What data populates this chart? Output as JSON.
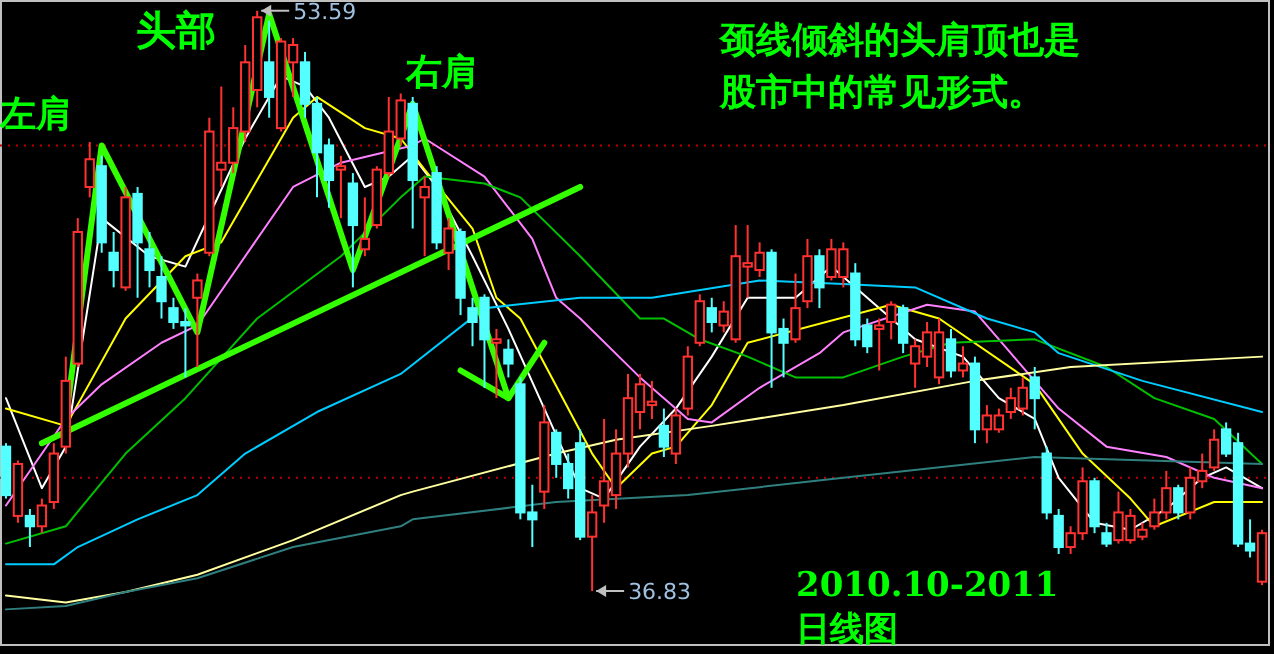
{
  "chart_data": {
    "type": "candlestick",
    "categories": [
      null,
      null,
      null,
      null,
      null,
      null,
      null,
      null,
      null,
      null,
      null,
      null,
      null,
      null,
      null,
      null,
      null,
      null,
      null,
      null,
      null,
      null,
      null,
      null,
      null,
      null,
      null,
      null,
      null,
      null,
      null,
      null,
      null,
      null,
      null,
      null,
      null,
      null,
      null,
      null,
      null,
      null,
      null,
      null,
      null,
      null,
      null,
      null,
      null,
      null,
      null,
      null,
      null,
      null,
      null,
      null,
      null,
      null,
      null,
      null,
      null,
      null,
      null,
      null,
      null,
      null,
      null,
      null,
      null,
      null,
      null,
      null,
      null,
      null,
      null,
      null,
      null,
      null,
      null,
      null,
      null,
      null,
      null,
      null,
      null,
      null,
      null,
      null,
      null,
      null,
      null,
      null,
      null,
      null,
      null,
      null,
      null,
      null,
      null,
      null,
      null,
      null,
      null,
      null,
      null,
      null
    ],
    "ohlc": [
      [
        41.0,
        41.1,
        39.5,
        39.6
      ],
      [
        39.0,
        40.6,
        38.8,
        40.5
      ],
      [
        39.0,
        39.2,
        38.1,
        38.7
      ],
      [
        38.7,
        39.5,
        38.5,
        39.3
      ],
      [
        39.4,
        41.1,
        39.2,
        40.8
      ],
      [
        41.0,
        43.6,
        40.8,
        42.9
      ],
      [
        43.4,
        47.6,
        43.3,
        47.2
      ],
      [
        48.5,
        49.8,
        48.2,
        49.3
      ],
      [
        49.1,
        49.4,
        46.6,
        46.9
      ],
      [
        46.6,
        47.2,
        45.6,
        46.1
      ],
      [
        45.6,
        48.5,
        45.5,
        48.2
      ],
      [
        48.3,
        48.5,
        45.3,
        46.9
      ],
      [
        46.7,
        47.2,
        45.6,
        46.1
      ],
      [
        45.9,
        46.5,
        44.7,
        45.2
      ],
      [
        45.0,
        45.3,
        44.4,
        44.6
      ],
      [
        44.6,
        45.0,
        43.0,
        44.5
      ],
      [
        45.3,
        46.0,
        43.3,
        45.8
      ],
      [
        46.6,
        50.5,
        46.5,
        50.1
      ],
      [
        49.0,
        51.4,
        48.5,
        49.2
      ],
      [
        49.2,
        50.8,
        48.9,
        50.2
      ],
      [
        50.1,
        52.6,
        49.8,
        52.1
      ],
      [
        51.3,
        53.59,
        50.8,
        53.4
      ],
      [
        52.1,
        53.3,
        50.5,
        51.1
      ],
      [
        50.2,
        52.8,
        50.1,
        52.7
      ],
      [
        52.1,
        52.8,
        51.1,
        52.6
      ],
      [
        52.1,
        52.4,
        50.5,
        50.9
      ],
      [
        50.9,
        51.1,
        48.2,
        49.5
      ],
      [
        49.7,
        49.9,
        47.9,
        48.7
      ],
      [
        49.0,
        49.4,
        47.6,
        49.1
      ],
      [
        48.6,
        48.9,
        45.6,
        47.4
      ],
      [
        46.7,
        48.2,
        46.5,
        47.0
      ],
      [
        47.4,
        49.1,
        47.3,
        49.0
      ],
      [
        48.9,
        51.1,
        48.8,
        50.1
      ],
      [
        49.9,
        51.2,
        49.7,
        51.0
      ],
      [
        50.9,
        51.1,
        47.3,
        48.7
      ],
      [
        48.2,
        48.8,
        46.5,
        48.5
      ],
      [
        48.9,
        49.1,
        46.7,
        46.9
      ],
      [
        46.6,
        47.6,
        46.1,
        47.3
      ],
      [
        47.2,
        47.3,
        44.8,
        45.3
      ],
      [
        45.0,
        45.3,
        43.9,
        44.6
      ],
      [
        45.3,
        45.4,
        42.7,
        44.1
      ],
      [
        44.0,
        44.4,
        42.4,
        44.1
      ],
      [
        43.8,
        44.1,
        43.0,
        43.4
      ],
      [
        42.8,
        43.0,
        38.9,
        39.1
      ],
      [
        39.1,
        39.9,
        38.1,
        38.9
      ],
      [
        39.7,
        42.2,
        39.2,
        41.7
      ],
      [
        41.4,
        41.5,
        40.1,
        40.5
      ],
      [
        40.5,
        40.8,
        39.5,
        39.8
      ],
      [
        41.1,
        41.5,
        38.3,
        38.4
      ],
      [
        38.4,
        39.6,
        36.83,
        39.1
      ],
      [
        39.3,
        41.8,
        38.8,
        40.0
      ],
      [
        39.6,
        41.5,
        39.2,
        40.8
      ],
      [
        40.8,
        43.1,
        40.4,
        42.4
      ],
      [
        42.0,
        43.1,
        41.5,
        42.8
      ],
      [
        42.2,
        42.9,
        41.8,
        42.3
      ],
      [
        41.6,
        42.1,
        40.7,
        41.0
      ],
      [
        40.8,
        42.1,
        40.5,
        41.9
      ],
      [
        42.1,
        43.9,
        41.9,
        43.6
      ],
      [
        44.0,
        45.4,
        43.9,
        45.2
      ],
      [
        45.0,
        45.3,
        44.3,
        44.6
      ],
      [
        44.5,
        45.2,
        44.3,
        44.9
      ],
      [
        44.1,
        47.4,
        44.0,
        46.5
      ],
      [
        46.2,
        47.4,
        45.3,
        46.3
      ],
      [
        46.1,
        46.9,
        45.9,
        46.6
      ],
      [
        46.6,
        46.7,
        42.7,
        44.3
      ],
      [
        44.4,
        44.7,
        43.0,
        44.0
      ],
      [
        44.1,
        46.0,
        44.0,
        45.0
      ],
      [
        45.2,
        47.0,
        45.0,
        46.5
      ],
      [
        46.5,
        46.7,
        45.0,
        45.6
      ],
      [
        45.9,
        47.0,
        45.8,
        46.7
      ],
      [
        45.9,
        46.9,
        45.6,
        46.7
      ],
      [
        46.0,
        46.3,
        43.9,
        44.1
      ],
      [
        44.5,
        44.7,
        43.7,
        43.9
      ],
      [
        44.4,
        44.7,
        43.2,
        44.5
      ],
      [
        44.6,
        45.2,
        44.1,
        45.1
      ],
      [
        45.0,
        45.1,
        43.7,
        44.0
      ],
      [
        43.4,
        44.1,
        42.7,
        43.9
      ],
      [
        43.6,
        44.6,
        43.3,
        44.3
      ],
      [
        43.0,
        44.7,
        42.8,
        44.3
      ],
      [
        44.1,
        44.4,
        43.0,
        43.2
      ],
      [
        43.2,
        43.9,
        43.0,
        43.4
      ],
      [
        43.4,
        43.6,
        41.1,
        41.5
      ],
      [
        41.5,
        42.2,
        41.1,
        41.9
      ],
      [
        41.5,
        42.1,
        41.4,
        41.9
      ],
      [
        42.0,
        42.7,
        41.8,
        42.4
      ],
      [
        42.1,
        43.0,
        41.9,
        42.7
      ],
      [
        43.0,
        43.3,
        41.5,
        42.4
      ],
      [
        40.8,
        41.0,
        38.9,
        39.1
      ],
      [
        39.0,
        39.2,
        37.9,
        38.1
      ],
      [
        38.1,
        38.7,
        37.9,
        38.5
      ],
      [
        38.5,
        40.4,
        38.3,
        40.0
      ],
      [
        40.0,
        40.1,
        38.5,
        38.7
      ],
      [
        38.5,
        38.8,
        38.1,
        38.2
      ],
      [
        38.3,
        39.7,
        38.2,
        39.1
      ],
      [
        38.3,
        39.2,
        38.2,
        39.0
      ],
      [
        38.4,
        38.8,
        38.3,
        38.6
      ],
      [
        38.7,
        39.5,
        38.6,
        39.1
      ],
      [
        39.1,
        40.3,
        38.9,
        39.8
      ],
      [
        39.8,
        39.9,
        38.9,
        39.1
      ],
      [
        39.1,
        40.4,
        38.9,
        40.1
      ],
      [
        40.0,
        40.8,
        39.8,
        40.3
      ],
      [
        40.4,
        41.5,
        40.3,
        41.2
      ],
      [
        41.5,
        41.7,
        40.7,
        40.8
      ],
      [
        41.1,
        41.4,
        38.1,
        38.2
      ],
      [
        38.2,
        38.9,
        37.8,
        38.0
      ],
      [
        37.1,
        38.6,
        37.0,
        38.5
      ]
    ],
    "colors": [
      "#54ffff",
      "#ff3232",
      "#54ffff",
      "#ff3232",
      "#ff3232",
      "#ff3232",
      "#ff3232",
      "#ff3232",
      "#54ffff",
      "#54ffff",
      "#ff3232",
      "#54ffff",
      "#54ffff",
      "#54ffff",
      "#54ffff",
      "#54ffff",
      "#ff3232",
      "#ff3232",
      "#ff3232",
      "#ff3232",
      "#ff3232",
      "#ff3232",
      "#54ffff",
      "#ff3232",
      "#ff3232",
      "#54ffff",
      "#54ffff",
      "#54ffff",
      "#ff3232",
      "#54ffff",
      "#ff3232",
      "#ff3232",
      "#ff3232",
      "#ff3232",
      "#54ffff",
      "#ff3232",
      "#54ffff",
      "#ff3232",
      "#54ffff",
      "#54ffff",
      "#54ffff",
      "#ff3232",
      "#54ffff",
      "#54ffff",
      "#54ffff",
      "#ff3232",
      "#54ffff",
      "#54ffff",
      "#54ffff",
      "#ff3232",
      "#ff3232",
      "#ff3232",
      "#ff3232",
      "#ff3232",
      "#ff3232",
      "#54ffff",
      "#ff3232",
      "#ff3232",
      "#ff3232",
      "#54ffff",
      "#ff3232",
      "#ff3232",
      "#ff3232",
      "#ff3232",
      "#54ffff",
      "#54ffff",
      "#ff3232",
      "#ff3232",
      "#54ffff",
      "#ff3232",
      "#ff3232",
      "#54ffff",
      "#54ffff",
      "#ff3232",
      "#ff3232",
      "#54ffff",
      "#ff3232",
      "#ff3232",
      "#ff3232",
      "#54ffff",
      "#ff3232",
      "#54ffff",
      "#ff3232",
      "#ff3232",
      "#ff3232",
      "#ff3232",
      "#54ffff",
      "#54ffff",
      "#54ffff",
      "#ff3232",
      "#ff3232",
      "#54ffff",
      "#54ffff",
      "#ff3232",
      "#ff3232",
      "#ff3232",
      "#ff3232",
      "#ff3232",
      "#54ffff",
      "#ff3232",
      "#ff3232",
      "#ff3232",
      "#54ffff",
      "#54ffff",
      "#54ffff",
      "#ff3232"
    ],
    "ylim": [
      35.3,
      53.9
    ],
    "tick_labels": false,
    "series": [
      {
        "type": "line",
        "color": "#ffffff",
        "values": [
          42.4,
          null,
          null,
          39.8,
          null,
          41.0,
          null,
          null,
          47.6,
          null,
          null,
          null,
          46.5,
          null,
          null,
          46.2,
          null,
          null,
          null,
          null,
          49.9,
          null,
          null,
          51.7,
          null,
          51.4,
          null,
          50.5,
          null,
          null,
          48.5,
          null,
          48.8,
          null,
          49.4,
          null,
          48.5,
          null,
          null,
          46.5,
          null,
          null,
          44.4,
          null,
          null,
          42.1,
          null,
          null,
          39.8,
          null,
          39.5,
          null,
          null,
          41.0,
          null,
          null,
          42.1,
          null,
          null,
          43.6,
          null,
          null,
          45.3,
          null,
          null,
          null,
          45.3,
          null,
          null,
          46.2,
          null,
          null,
          45.3,
          null,
          null,
          null,
          44.1,
          null,
          null,
          null,
          43.6,
          null,
          null,
          42.4,
          null,
          null,
          41.8,
          null,
          40.1,
          null,
          null,
          38.8,
          null,
          null,
          38.6,
          null,
          null,
          39.2,
          null,
          null,
          40.1,
          null,
          40.4,
          null,
          null,
          39.8
        ]
      },
      {
        "type": "line",
        "color": "#ffff00",
        "values": [
          42.1,
          null,
          null,
          null,
          null,
          41.6,
          null,
          null,
          null,
          null,
          44.7,
          null,
          null,
          null,
          null,
          46.5,
          null,
          null,
          46.9,
          null,
          null,
          null,
          null,
          null,
          50.5,
          null,
          51.1,
          null,
          null,
          null,
          50.2,
          null,
          null,
          49.9,
          null,
          49.0,
          null,
          null,
          null,
          47.3,
          null,
          45.3,
          null,
          44.7,
          null,
          null,
          null,
          null,
          null,
          40.8,
          null,
          39.8,
          null,
          null,
          40.8,
          null,
          41.0,
          null,
          null,
          42.2,
          null,
          null,
          44.0,
          null,
          null,
          null,
          null,
          null,
          null,
          null,
          null,
          null,
          null,
          null,
          45.1,
          null,
          null,
          null,
          44.7,
          null,
          null,
          null,
          null,
          null,
          null,
          null,
          42.8,
          null,
          null,
          null,
          40.8,
          null,
          null,
          null,
          39.5,
          null,
          38.7,
          null,
          null,
          null,
          null,
          39.4,
          null,
          null,
          null,
          39.4
        ]
      },
      {
        "type": "line",
        "color": "#ff80ff",
        "values": [
          39.3,
          null,
          null,
          null,
          null,
          41.8,
          null,
          null,
          42.8,
          null,
          null,
          null,
          null,
          44.0,
          null,
          null,
          44.5,
          null,
          null,
          null,
          null,
          null,
          null,
          null,
          48.5,
          null,
          null,
          null,
          49.2,
          null,
          null,
          null,
          null,
          null,
          49.7,
          49.9,
          null,
          null,
          null,
          null,
          48.8,
          null,
          null,
          null,
          47.0,
          null,
          45.3,
          null,
          44.7,
          null,
          null,
          null,
          null,
          43.0,
          null,
          null,
          null,
          41.8,
          null,
          41.7,
          null,
          null,
          null,
          42.7,
          null,
          null,
          null,
          null,
          43.7,
          null,
          44.3,
          null,
          null,
          null,
          null,
          null,
          null,
          45.1,
          null,
          null,
          null,
          44.9,
          null,
          null,
          null,
          null,
          null,
          null,
          42.1,
          null,
          null,
          null,
          41.0,
          null,
          null,
          null,
          null,
          40.7,
          null,
          null,
          null,
          40.1,
          null,
          null,
          null,
          39.8
        ]
      },
      {
        "type": "line",
        "color": "#00c000",
        "values": [
          38.2,
          null,
          null,
          null,
          null,
          38.7,
          null,
          null,
          null,
          null,
          40.8,
          null,
          null,
          null,
          null,
          42.4,
          null,
          null,
          null,
          null,
          null,
          44.7,
          null,
          null,
          null,
          null,
          null,
          null,
          46.5,
          null,
          null,
          null,
          null,
          48.2,
          null,
          48.8,
          null,
          null,
          null,
          null,
          48.6,
          null,
          null,
          48.2,
          null,
          null,
          null,
          null,
          46.5,
          null,
          null,
          null,
          null,
          44.7,
          null,
          44.7,
          null,
          null,
          44.1,
          null,
          null,
          null,
          43.6,
          null,
          null,
          null,
          43.0,
          null,
          null,
          null,
          43.0,
          null,
          null,
          null,
          null,
          43.6,
          null,
          null,
          null,
          44.0,
          null,
          null,
          null,
          null,
          null,
          null,
          44.1,
          null,
          null,
          null,
          null,
          null,
          43.3,
          null,
          null,
          null,
          42.4,
          null,
          null,
          null,
          null,
          41.8,
          null,
          null,
          null,
          40.5
        ]
      },
      {
        "type": "line",
        "color": "#00ccff",
        "values": [
          37.6,
          null,
          null,
          null,
          37.6,
          null,
          38.1,
          null,
          null,
          null,
          null,
          38.9,
          null,
          null,
          null,
          null,
          39.6,
          null,
          null,
          null,
          40.8,
          null,
          null,
          null,
          null,
          null,
          42.0,
          null,
          null,
          null,
          null,
          null,
          null,
          43.1,
          null,
          null,
          null,
          null,
          null,
          null,
          45.0,
          null,
          null,
          null,
          null,
          null,
          null,
          null,
          45.3,
          null,
          null,
          null,
          null,
          null,
          45.3,
          null,
          null,
          null,
          null,
          null,
          null,
          null,
          null,
          45.8,
          null,
          null,
          null,
          null,
          null,
          null,
          45.7,
          null,
          null,
          null,
          null,
          null,
          45.6,
          null,
          null,
          null,
          null,
          null,
          44.7,
          null,
          null,
          null,
          44.3,
          null,
          43.7,
          null,
          null,
          null,
          null,
          null,
          null,
          42.9,
          null,
          null,
          null,
          null,
          null,
          null,
          null,
          null,
          null,
          42.0
        ]
      },
      {
        "type": "line",
        "color": "#ffffa0",
        "values": [
          36.7,
          null,
          null,
          null,
          null,
          36.5,
          null,
          null,
          null,
          null,
          36.8,
          null,
          null,
          null,
          null,
          null,
          37.3,
          null,
          null,
          null,
          null,
          null,
          null,
          null,
          38.3,
          null,
          null,
          null,
          null,
          null,
          null,
          null,
          null,
          39.6,
          39.7,
          null,
          null,
          null,
          null,
          null,
          null,
          null,
          null,
          null,
          null,
          null,
          40.8,
          null,
          null,
          null,
          null,
          41.2,
          null,
          null,
          null,
          null,
          null,
          null,
          null,
          41.6,
          null,
          null,
          null,
          null,
          null,
          null,
          null,
          null,
          null,
          null,
          42.2,
          null,
          null,
          null,
          null,
          null,
          null,
          null,
          null,
          null,
          null,
          42.9,
          null,
          null,
          null,
          null,
          null,
          null,
          null,
          43.3,
          null,
          null,
          null,
          null,
          null,
          null,
          null,
          null,
          null,
          null,
          null,
          null,
          null,
          null,
          null,
          43.6
        ]
      },
      {
        "type": "line",
        "color": "#2f7f7f",
        "values": [
          36.3,
          null,
          null,
          null,
          null,
          36.4,
          null,
          null,
          null,
          null,
          36.8,
          null,
          null,
          null,
          null,
          null,
          37.2,
          null,
          null,
          null,
          null,
          null,
          null,
          null,
          38.1,
          null,
          null,
          null,
          null,
          null,
          null,
          null,
          null,
          38.7,
          38.9,
          null,
          null,
          null,
          null,
          null,
          null,
          null,
          null,
          null,
          null,
          null,
          39.4,
          null,
          null,
          null,
          null,
          null,
          null,
          null,
          null,
          null,
          null,
          39.6,
          null,
          null,
          null,
          null,
          null,
          null,
          null,
          null,
          null,
          null,
          null,
          null,
          40.1,
          null,
          null,
          null,
          null,
          null,
          null,
          null,
          null,
          null,
          null,
          null,
          null,
          null,
          null,
          null,
          40.7,
          null,
          null,
          null,
          null,
          null,
          null,
          null,
          null,
          null,
          null,
          null,
          null,
          null,
          null,
          null,
          null,
          null,
          null,
          40.5
        ]
      },
      {
        "type": "line",
        "color": "#33ff00",
        "values": [
          null,
          null,
          null,
          null,
          null,
          41.8,
          null,
          null,
          49.7,
          null,
          null,
          null,
          null,
          null,
          null,
          null,
          44.3,
          null,
          null,
          null,
          null,
          null,
          53.5,
          null,
          null,
          null,
          null,
          null,
          null,
          46.1,
          null,
          null,
          null,
          null,
          50.9,
          null,
          null,
          null,
          null,
          null,
          null,
          null,
          42.4,
          null,
          null,
          null,
          null,
          null,
          null,
          null,
          null,
          null,
          null,
          null,
          null,
          null,
          null,
          null,
          null,
          null,
          null,
          null,
          null,
          null,
          null,
          null,
          null,
          null,
          null,
          null,
          null,
          null,
          null,
          null,
          null,
          null,
          null,
          null,
          null,
          null,
          null,
          null,
          null,
          null,
          null,
          null,
          null,
          null,
          null,
          null,
          null,
          null,
          null,
          null,
          null,
          null,
          null,
          null,
          null,
          null,
          null,
          null,
          null,
          null,
          null,
          null
        ]
      },
      {
        "type": "line",
        "color": "#33ff00",
        "values": [
          null,
          null,
          null,
          null,
          null,
          null,
          null,
          null,
          null,
          null,
          null,
          null,
          null,
          null,
          null,
          null,
          null,
          null,
          null,
          null,
          null,
          null,
          null,
          null,
          null,
          null,
          null,
          null,
          null,
          null,
          null,
          null,
          null,
          null,
          null,
          null,
          null,
          null,
          43.2,
          null,
          null,
          null,
          42.4,
          null,
          null,
          44.0,
          null,
          null,
          null,
          null,
          null,
          null,
          null,
          null,
          null,
          null,
          null,
          null,
          null,
          null,
          null,
          null,
          null,
          null,
          null,
          null,
          null,
          null,
          null,
          null,
          null,
          null,
          null,
          null,
          null,
          null,
          null,
          null,
          null,
          null,
          null,
          null,
          null,
          null,
          null,
          null,
          null,
          null,
          null,
          null,
          null,
          null,
          null,
          null,
          null,
          null,
          null,
          null,
          null,
          null,
          null,
          null,
          null,
          null,
          null,
          null
        ]
      },
      {
        "type": "line",
        "color": "#33ff00",
        "values": [
          null,
          null,
          null,
          41.1,
          null,
          null,
          null,
          null,
          null,
          null,
          null,
          null,
          null,
          null,
          null,
          null,
          null,
          null,
          null,
          null,
          null,
          null,
          null,
          null,
          null,
          null,
          null,
          null,
          null,
          null,
          null,
          null,
          null,
          null,
          null,
          null,
          null,
          null,
          null,
          null,
          null,
          null,
          null,
          null,
          null,
          null,
          null,
          null,
          48.5,
          null,
          null,
          null,
          null,
          null,
          null,
          null,
          null,
          null,
          null,
          null,
          null,
          null,
          null,
          null,
          null,
          null,
          null,
          null,
          null,
          null,
          null,
          null,
          null,
          null,
          null,
          null,
          null,
          null,
          null,
          null,
          null,
          null,
          null,
          null,
          null,
          null,
          null,
          null,
          null,
          null,
          null,
          null,
          null,
          null,
          null,
          null,
          null,
          null,
          null,
          null,
          null,
          null,
          null,
          null,
          null,
          null
        ]
      }
    ],
    "ref_lines": [
      {
        "axis": "y",
        "value": 49.7,
        "color": "#c00000",
        "line_style": "dotted"
      },
      {
        "axis": "y",
        "value": 40.1,
        "color": "#c00000",
        "line_style": "dotted"
      }
    ],
    "annotations": [
      "头部",
      "左肩",
      "右肩",
      "颈线倾斜的头肩顶也是",
      "股市中的常见形式。",
      "2010.10-2011",
      "日线图",
      "53.59",
      "36.83"
    ]
  }
}
